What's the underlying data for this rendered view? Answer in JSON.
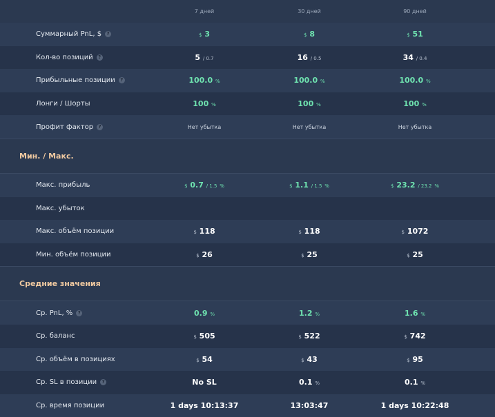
{
  "headers": [
    "7 дней",
    "30 дней",
    "90 дней"
  ],
  "rows1": [
    {
      "label": "Суммарный PnL, $",
      "help": true,
      "vals": [
        {
          "cur": "$",
          "v": "3"
        },
        {
          "cur": "$",
          "v": "8"
        },
        {
          "cur": "$",
          "v": "51"
        }
      ],
      "style": "green"
    },
    {
      "label": "Кол-во позиций",
      "help": true,
      "vals": [
        {
          "v": "5",
          "sub": "/ 0.7"
        },
        {
          "v": "16",
          "sub": "/ 0.5"
        },
        {
          "v": "34",
          "sub": "/ 0.4"
        }
      ],
      "style": "white"
    },
    {
      "label": "Прибыльные позиции",
      "help": true,
      "vals": [
        {
          "v": "100.0",
          "pct": "%"
        },
        {
          "v": "100.0",
          "pct": "%"
        },
        {
          "v": "100.0",
          "pct": "%"
        }
      ],
      "style": "green"
    },
    {
      "label": "Лонги / Шорты",
      "help": false,
      "vals": [
        {
          "v": "100",
          "pct": "%"
        },
        {
          "v": "100",
          "pct": "%"
        },
        {
          "v": "100",
          "pct": "%"
        }
      ],
      "style": "green"
    },
    {
      "label": "Профит фактор",
      "help": true,
      "vals": [
        {
          "text": "Нет убытка"
        },
        {
          "text": "Нет убытка"
        },
        {
          "text": "Нет убытка"
        }
      ],
      "style": "muted"
    }
  ],
  "section1": "Мин. / Макс.",
  "rows2": [
    {
      "label": "Макс. прибыль",
      "help": false,
      "vals": [
        {
          "cur": "$",
          "v": "0.7",
          "sub": "/ 1.5",
          "pct": "%"
        },
        {
          "cur": "$",
          "v": "1.1",
          "sub": "/ 1.5",
          "pct": "%"
        },
        {
          "cur": "$",
          "v": "23.2",
          "sub": "/ 23.2",
          "pct": "%"
        }
      ],
      "style": "green"
    },
    {
      "label": "Макс. убыток",
      "help": false,
      "vals": [
        {},
        {},
        {}
      ],
      "style": "white"
    },
    {
      "label": "Макс. объём позиции",
      "help": false,
      "vals": [
        {
          "cur": "$",
          "v": "118"
        },
        {
          "cur": "$",
          "v": "118"
        },
        {
          "cur": "$",
          "v": "1072"
        }
      ],
      "style": "white"
    },
    {
      "label": "Мин. объём позиции",
      "help": false,
      "vals": [
        {
          "cur": "$",
          "v": "26"
        },
        {
          "cur": "$",
          "v": "25"
        },
        {
          "cur": "$",
          "v": "25"
        }
      ],
      "style": "white"
    }
  ],
  "section2": "Средние значения",
  "rows3": [
    {
      "label": "Ср. PnL, %",
      "help": true,
      "vals": [
        {
          "v": "0.9",
          "pct": "%"
        },
        {
          "v": "1.2",
          "pct": "%"
        },
        {
          "v": "1.6",
          "pct": "%"
        }
      ],
      "style": "green"
    },
    {
      "label": "Ср. баланс",
      "help": false,
      "vals": [
        {
          "cur": "$",
          "v": "505"
        },
        {
          "cur": "$",
          "v": "522"
        },
        {
          "cur": "$",
          "v": "742"
        }
      ],
      "style": "white"
    },
    {
      "label": "Ср. объём в позициях",
      "help": false,
      "vals": [
        {
          "cur": "$",
          "v": "54"
        },
        {
          "cur": "$",
          "v": "43"
        },
        {
          "cur": "$",
          "v": "95"
        }
      ],
      "style": "white"
    },
    {
      "label": "Ср. SL в позиции",
      "help": true,
      "vals": [
        {
          "v": "No SL"
        },
        {
          "v": "0.1",
          "pct": "%"
        },
        {
          "v": "0.1",
          "pct": "%"
        }
      ],
      "style": "white"
    },
    {
      "label": "Ср. время позиции",
      "help": false,
      "vals": [
        {
          "v": "1 days 10:13:37"
        },
        {
          "v": "13:03:47"
        },
        {
          "v": "1 days 10:22:48"
        }
      ],
      "style": "white"
    }
  ],
  "help_glyph": "?"
}
